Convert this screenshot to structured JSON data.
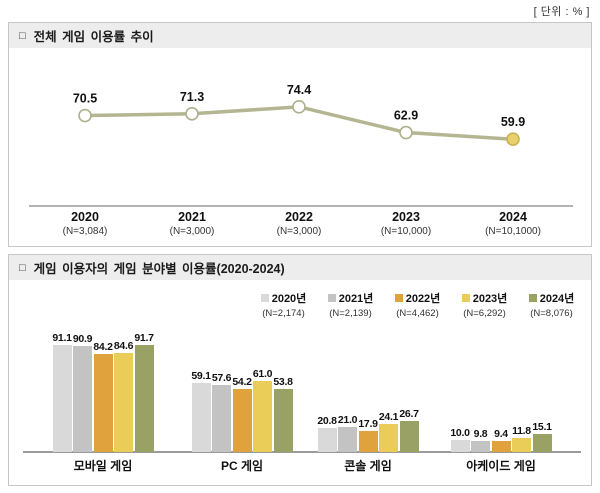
{
  "unit_label": "[ 단위 : % ]",
  "panels": [
    {
      "bullet": "□",
      "title": "전체 게임 이용률 추이"
    },
    {
      "bullet": "□",
      "title": "게임 이용자의 게임 분야별 이용률(2020-2024)"
    }
  ],
  "chart_data": [
    {
      "type": "line",
      "title": "전체 게임 이용률 추이",
      "unit": "%",
      "x": [
        "2020",
        "2021",
        "2022",
        "2023",
        "2024"
      ],
      "x_sublabels": [
        "(N=3,084)",
        "(N=3,000)",
        "(N=3,000)",
        "(N=10,000)",
        "(N=10,1000)"
      ],
      "values": [
        70.5,
        71.3,
        74.4,
        62.9,
        59.9
      ],
      "ylim": [
        30,
        90
      ],
      "grid": false,
      "legend_position": "none",
      "line_color": "#b4b691",
      "marker_fill": "#ffffff",
      "marker_stroke": "#aeb18c",
      "last_marker_fill": "#e9d06b",
      "last_marker_stroke": "#c9b351",
      "axis_color": "#9a9a9a"
    },
    {
      "type": "bar",
      "title": "게임 이용자의 게임 분야별 이용률(2020-2024)",
      "unit": "%",
      "categories": [
        "모바일 게임",
        "PC 게임",
        "콘솔 게임",
        "아케이드 게임"
      ],
      "series": [
        {
          "name": "2020년",
          "n_label": "(N=2,174)",
          "color": "#d9d9d9",
          "values": [
            91.1,
            59.1,
            20.8,
            10.0
          ]
        },
        {
          "name": "2021년",
          "n_label": "(N=2,139)",
          "color": "#c3c3c3",
          "values": [
            90.9,
            57.6,
            21.0,
            9.8
          ]
        },
        {
          "name": "2022년",
          "n_label": "(N=4,462)",
          "color": "#e0a23c",
          "values": [
            84.2,
            54.2,
            17.9,
            9.4
          ]
        },
        {
          "name": "2023년",
          "n_label": "(N=6,292)",
          "color": "#e9cd58",
          "values": [
            84.6,
            61.0,
            24.1,
            11.8
          ]
        },
        {
          "name": "2024년",
          "n_label": "(N=8,076)",
          "color": "#9aa164",
          "values": [
            91.7,
            53.8,
            26.7,
            15.1
          ]
        }
      ],
      "ylim": [
        0,
        100
      ],
      "grid": false,
      "legend_position": "top-right"
    }
  ]
}
